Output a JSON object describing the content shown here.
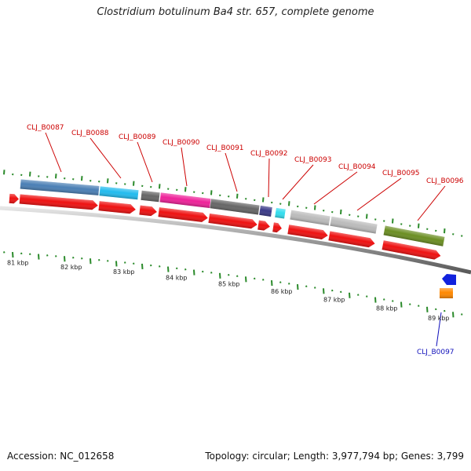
{
  "title": "Clostridium botulinum Ba4 str. 657, complete genome",
  "footer": {
    "accession": "Accession: NC_012658",
    "topology": "Topology: circular; Length: 3,977,794 bp; Genes: 3,799"
  },
  "axis": {
    "unit": "kbp",
    "labels": [
      "81 kbp",
      "82 kbp",
      "83 kbp",
      "84 kbp",
      "85 kbp",
      "86 kbp",
      "87 kbp",
      "88 kbp",
      "89 kbp"
    ]
  },
  "colors": {
    "cds": "#ee1111",
    "label_forward": "#cc0000",
    "label_reverse": "#1111bb",
    "tick": "#2a8a2a",
    "backbone": "#888888"
  },
  "genes": [
    {
      "id": "CLJ_B0087",
      "strand": "forward",
      "color": "#4a7fb5"
    },
    {
      "id": "CLJ_B0088",
      "strand": "forward",
      "color": "#22bbee"
    },
    {
      "id": "CLJ_B0089",
      "strand": "forward",
      "color": "#666666"
    },
    {
      "id": "CLJ_B0090",
      "strand": "forward",
      "color": "#ee2299"
    },
    {
      "id": "CLJ_B0091",
      "strand": "forward",
      "color": "#666666"
    },
    {
      "id": "CLJ_B0092",
      "strand": "forward",
      "color": "#3a3a88"
    },
    {
      "id": "CLJ_B0093",
      "strand": "forward",
      "color": "#33ddee"
    },
    {
      "id": "CLJ_B0094",
      "strand": "forward",
      "color": "#bbbbbb"
    },
    {
      "id": "CLJ_B0095",
      "strand": "forward",
      "color": "#bbbbbb"
    },
    {
      "id": "CLJ_B0096",
      "strand": "forward",
      "color": "#6b8e23"
    },
    {
      "id": "CLJ_B0097",
      "strand": "reverse",
      "color": "#ff8800"
    }
  ]
}
